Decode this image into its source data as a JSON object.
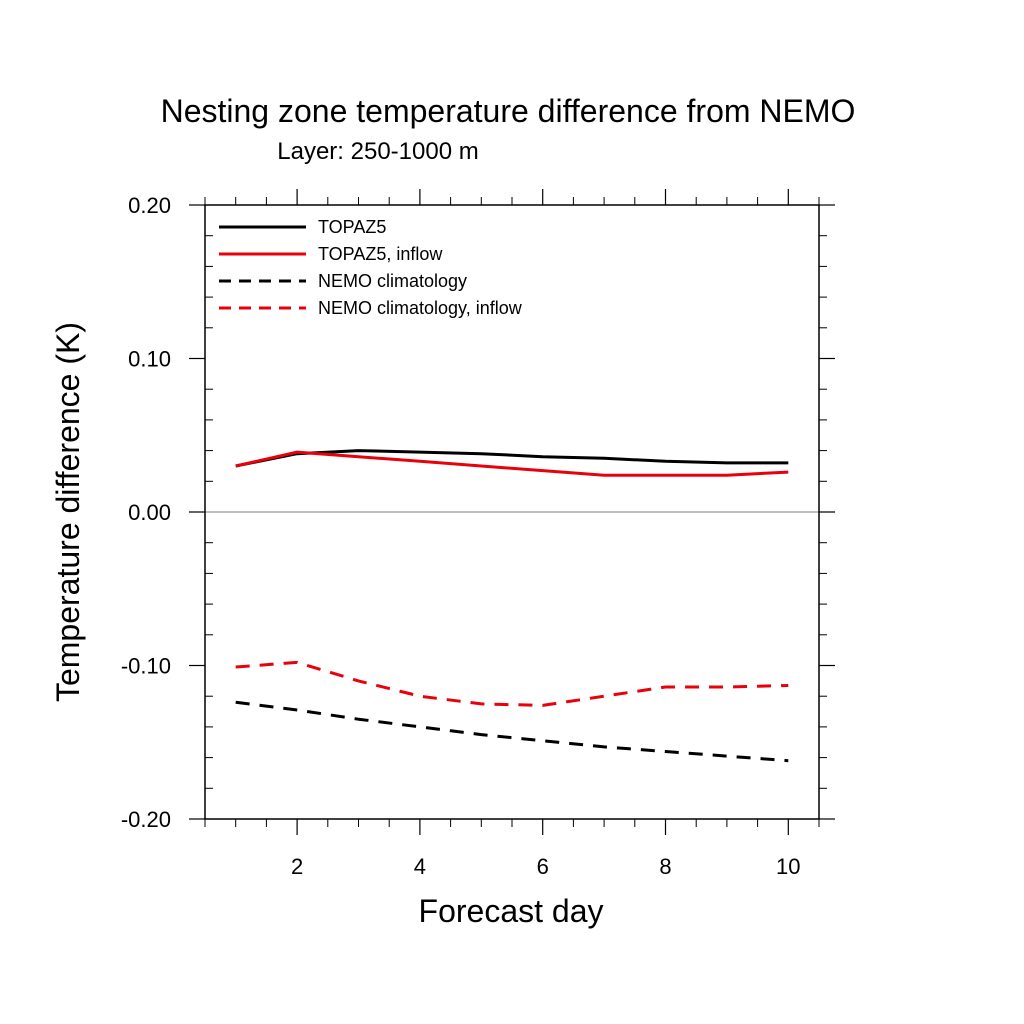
{
  "chart_data": {
    "type": "line",
    "title": "Nesting zone temperature difference from NEMO",
    "subtitle": "Layer: 250-1000 m",
    "xlabel": "Forecast day",
    "ylabel": "Temperature difference (K)",
    "xlim": [
      0.5,
      10.5
    ],
    "ylim": [
      -0.2,
      0.2
    ],
    "xticks": [
      2,
      4,
      6,
      8,
      10
    ],
    "yticks": [
      -0.2,
      -0.1,
      0.0,
      0.1,
      0.2
    ],
    "ytick_labels": [
      "-0.20",
      "-0.10",
      "0.00",
      "0.10",
      "0.20"
    ],
    "x_minor_step": 0.5,
    "y_minor_step": 0.02,
    "zero_line": true,
    "grid": false,
    "legend_position": "top-left",
    "x": [
      1,
      2,
      3,
      4,
      5,
      6,
      7,
      8,
      9,
      10
    ],
    "series": [
      {
        "name": "TOPAZ5",
        "color": "#000000",
        "dash": "solid",
        "values": [
          0.03,
          0.038,
          0.04,
          0.039,
          0.038,
          0.036,
          0.035,
          0.033,
          0.032,
          0.032
        ]
      },
      {
        "name": "TOPAZ5, inflow",
        "color": "#e8000b",
        "dash": "solid",
        "values": [
          0.03,
          0.039,
          0.036,
          0.033,
          0.03,
          0.027,
          0.024,
          0.024,
          0.024,
          0.026
        ]
      },
      {
        "name": "NEMO climatology",
        "color": "#000000",
        "dash": "dashed",
        "values": [
          -0.124,
          -0.129,
          -0.135,
          -0.14,
          -0.145,
          -0.149,
          -0.153,
          -0.156,
          -0.159,
          -0.162
        ]
      },
      {
        "name": "NEMO climatology, inflow",
        "color": "#e8000b",
        "dash": "dashed",
        "values": [
          -0.101,
          -0.098,
          -0.11,
          -0.12,
          -0.125,
          -0.126,
          -0.12,
          -0.114,
          -0.114,
          -0.113
        ]
      }
    ]
  }
}
